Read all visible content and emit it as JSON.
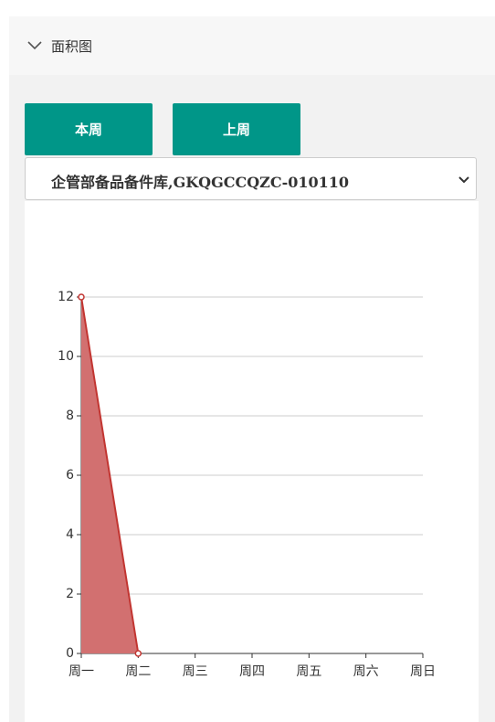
{
  "header": {
    "title": "面积图"
  },
  "buttons": [
    "本周",
    "上周"
  ],
  "select": {
    "value": "企管部备品备件库,GKQGCCQZC-010110"
  },
  "chart_data": {
    "type": "area",
    "categories": [
      "周一",
      "周二",
      "周三",
      "周四",
      "周五",
      "周六",
      "周日"
    ],
    "values": [
      12,
      0,
      null,
      null,
      null,
      null,
      null
    ],
    "color": "#c23531",
    "fill": "#d27070",
    "ylim": [
      0,
      12
    ],
    "yticks": [
      0,
      2,
      4,
      6,
      8,
      10,
      12
    ],
    "grid": true
  }
}
